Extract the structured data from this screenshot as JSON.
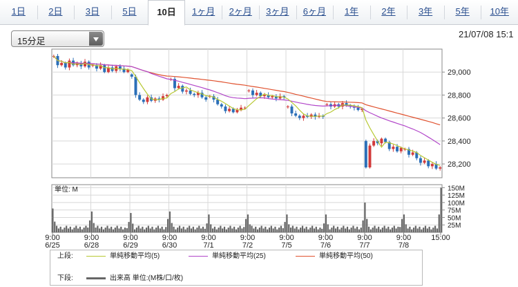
{
  "tabs": [
    {
      "label": "1日",
      "active": false
    },
    {
      "label": "2日",
      "active": false
    },
    {
      "label": "3日",
      "active": false
    },
    {
      "label": "5日",
      "active": false
    },
    {
      "label": "10日",
      "active": true
    },
    {
      "label": "1ヶ月",
      "active": false
    },
    {
      "label": "2ヶ月",
      "active": false
    },
    {
      "label": "3ヶ月",
      "active": false
    },
    {
      "label": "6ヶ月",
      "active": false
    },
    {
      "label": "1年",
      "active": false
    },
    {
      "label": "2年",
      "active": false
    },
    {
      "label": "3年",
      "active": false
    },
    {
      "label": "5年",
      "active": false
    },
    {
      "label": "10年",
      "active": false
    }
  ],
  "interval_select": {
    "value": "15分足"
  },
  "datetime": "21/07/08 15:1",
  "colors": {
    "up": "#d23a3a",
    "down": "#2b6fb8",
    "ma5": "#b7c832",
    "ma25": "#b145c9",
    "ma50": "#e0522f",
    "volume": "#666666",
    "grid": "#d8d8d8"
  },
  "chart_data": [
    {
      "type": "candlestick",
      "title": "",
      "ylim": [
        28080,
        29200
      ],
      "y_ticks": [
        "29,000",
        "28,800",
        "28,600",
        "28,400",
        "28,200"
      ],
      "y_tick_values": [
        29000,
        28800,
        28600,
        28400,
        28200
      ],
      "x_ticks": [
        {
          "time": "9:00",
          "date": "6/25"
        },
        {
          "time": "9:00",
          "date": "6/28"
        },
        {
          "time": "9:00",
          "date": "6/29"
        },
        {
          "time": "9:00",
          "date": "6/30"
        },
        {
          "time": "9:00",
          "date": "7/1"
        },
        {
          "time": "9:00",
          "date": "7/2"
        },
        {
          "time": "9:00",
          "date": "7/5"
        },
        {
          "time": "9:00",
          "date": "7/6"
        },
        {
          "time": "9:00",
          "date": "7/7"
        },
        {
          "time": "9:00",
          "date": "7/8"
        },
        {
          "time": "15:00",
          "date": ""
        }
      ],
      "days": [
        {
          "date": "6/25",
          "o": 29140,
          "c": 29040,
          "h": 29170,
          "l": 28980,
          "seq": [
            29140,
            29060,
            29080,
            29040,
            29100,
            29060,
            29080,
            29050,
            29090,
            29040
          ]
        },
        {
          "date": "6/28",
          "o": 29060,
          "c": 29020,
          "h": 29100,
          "l": 28990,
          "seq": [
            29060,
            29030,
            29060,
            29000,
            29040,
            29010,
            29050,
            29030,
            29000,
            29020
          ]
        },
        {
          "date": "6/29",
          "o": 28980,
          "c": 28800,
          "h": 28990,
          "l": 28720,
          "seq": [
            28960,
            28800,
            28760,
            28740,
            28780,
            28750,
            28770,
            28760,
            28790,
            28800
          ]
        },
        {
          "date": "6/30",
          "o": 28940,
          "c": 28760,
          "h": 28970,
          "l": 28730,
          "seq": [
            28940,
            28860,
            28880,
            28830,
            28840,
            28810,
            28800,
            28820,
            28780,
            28760
          ]
        },
        {
          "date": "7/1",
          "o": 28790,
          "c": 28690,
          "h": 28820,
          "l": 28640,
          "seq": [
            28790,
            28760,
            28720,
            28700,
            28660,
            28680,
            28650,
            28670,
            28690,
            28690
          ]
        },
        {
          "date": "7/2",
          "o": 28840,
          "c": 28780,
          "h": 28860,
          "l": 28740,
          "seq": [
            28840,
            28800,
            28820,
            28790,
            28800,
            28780,
            28790,
            28770,
            28790,
            28780
          ]
        },
        {
          "date": "7/5",
          "o": 28700,
          "c": 28610,
          "h": 28730,
          "l": 28570,
          "seq": [
            28700,
            28640,
            28620,
            28600,
            28620,
            28610,
            28630,
            28610,
            28620,
            28610
          ]
        },
        {
          "date": "7/6",
          "o": 28720,
          "c": 28680,
          "h": 28760,
          "l": 28600,
          "seq": [
            28720,
            28700,
            28720,
            28700,
            28730,
            28710,
            28700,
            28690,
            28670,
            28680
          ]
        },
        {
          "date": "7/7",
          "o": 28400,
          "c": 28340,
          "h": 28430,
          "l": 28160,
          "seq": [
            28170,
            28360,
            28400,
            28380,
            28420,
            28390,
            28330,
            28350,
            28310,
            28340
          ]
        },
        {
          "date": "7/8",
          "o": 28330,
          "c": 28170,
          "h": 28350,
          "l": 28110,
          "seq": [
            28330,
            28280,
            28300,
            28250,
            28210,
            28230,
            28180,
            28200,
            28160,
            28170
          ]
        }
      ],
      "ma_series": [
        {
          "name": "単純移動平均(5)",
          "key": "ma5"
        },
        {
          "name": "単純移動平均(25)",
          "key": "ma25"
        },
        {
          "name": "単純移動平均(50)",
          "key": "ma50"
        }
      ]
    },
    {
      "type": "bar",
      "title": "単位: M",
      "unit": "M",
      "ylim": [
        0,
        160
      ],
      "y_ticks": [
        "150M",
        "125M",
        "100M",
        "75M",
        "50M",
        "25M"
      ],
      "y_tick_values": [
        150,
        125,
        100,
        75,
        50,
        25
      ],
      "open_spike_values": [
        80,
        70,
        65,
        70,
        60,
        60,
        60,
        60,
        100,
        60
      ],
      "close_spike_values": [
        40,
        35,
        45,
        30,
        45,
        35,
        30,
        40,
        45,
        150
      ],
      "base_value": 10
    }
  ],
  "legend": {
    "upper_label": "上段:",
    "lower_label": "下段:",
    "items": [
      "単純移動平均(5)",
      "単純移動平均(25)",
      "単純移動平均(50)"
    ],
    "volume_item": "出来高 単位:(M株/口/枚)"
  }
}
